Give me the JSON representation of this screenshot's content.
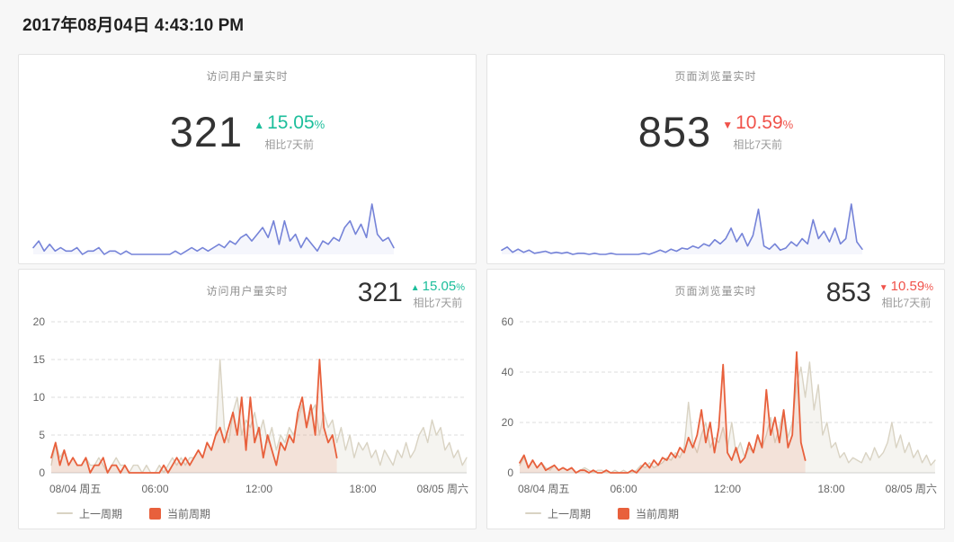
{
  "header": {
    "datetime": "2017年08月04日 4:43:10 PM"
  },
  "icons": {
    "up": "▲",
    "down": "▼"
  },
  "colors": {
    "up_green": "#1cbe9b",
    "down_red": "#f0524a",
    "current_orange": "#e8603c",
    "previous_gray": "#d9d3c3",
    "sparkline_blue": "#7583d8",
    "grid_dash": "#dedede",
    "axis_line": "#cfcfcf"
  },
  "chart_data": [
    {
      "id": "visitors",
      "type": "line",
      "title": "访问用户量实时",
      "summary": {
        "value": "321",
        "delta_percent": "15.05",
        "percent_sign": "%",
        "direction": "up",
        "compare_label": "相比7天前"
      },
      "x_unit": "hours since 08/04 00:00",
      "x_range_hours": [
        0,
        24
      ],
      "x_ticks": [
        {
          "pos": 0,
          "label": "08/04 周五"
        },
        {
          "pos": 6,
          "label": "06:00"
        },
        {
          "pos": 12,
          "label": "12:00"
        },
        {
          "pos": 18,
          "label": "18:00"
        },
        {
          "pos": 24,
          "label": "08/05 周六"
        }
      ],
      "ylim": [
        0,
        20
      ],
      "y_ticks": [
        0,
        5,
        10,
        15,
        20
      ],
      "grid": "horizontal-dashed",
      "legend_position": "bottom-left",
      "sample_step_hours": 0.25,
      "series": [
        {
          "name": "上一周期",
          "color": "#d9d3c3",
          "start_hour": 0,
          "values": [
            1,
            4,
            2,
            3,
            1,
            2,
            1,
            1,
            2,
            1,
            1,
            2,
            1,
            0,
            1,
            2,
            1,
            1,
            0,
            1,
            1,
            0,
            1,
            0,
            0,
            1,
            0,
            1,
            2,
            1,
            2,
            1,
            2,
            2,
            3,
            2,
            4,
            3,
            5,
            15,
            6,
            4,
            8,
            10,
            5,
            7,
            6,
            8,
            5,
            7,
            4,
            6,
            3,
            5,
            4,
            6,
            5,
            7,
            9,
            6,
            8,
            9,
            5,
            8,
            6,
            7,
            4,
            6,
            3,
            5,
            2,
            4,
            3,
            4,
            2,
            3,
            1,
            3,
            2,
            1,
            3,
            2,
            4,
            2,
            3,
            5,
            6,
            4,
            7,
            5,
            6,
            3,
            4,
            2,
            3,
            1,
            2
          ]
        },
        {
          "name": "当前周期",
          "color": "#e8603c",
          "start_hour": 0,
          "values": [
            2,
            4,
            1,
            3,
            1,
            2,
            1,
            1,
            2,
            0,
            1,
            1,
            2,
            0,
            1,
            1,
            0,
            1,
            0,
            0,
            0,
            0,
            0,
            0,
            0,
            0,
            1,
            0,
            1,
            2,
            1,
            2,
            1,
            2,
            3,
            2,
            4,
            3,
            5,
            6,
            4,
            6,
            8,
            5,
            10,
            3,
            10,
            4,
            6,
            2,
            5,
            3,
            1,
            4,
            3,
            5,
            4,
            8,
            10,
            6,
            9,
            5,
            15,
            6,
            4,
            5,
            2
          ]
        }
      ],
      "sparkline": {
        "color": "#7583d8",
        "x_range_hours": [
          0,
          20
        ],
        "series": "当前周期"
      }
    },
    {
      "id": "pageviews",
      "type": "line",
      "title": "页面浏览量实时",
      "summary": {
        "value": "853",
        "delta_percent": "10.59",
        "percent_sign": "%",
        "direction": "down",
        "compare_label": "相比7天前"
      },
      "x_unit": "hours since 08/04 00:00",
      "x_range_hours": [
        0,
        24
      ],
      "x_ticks": [
        {
          "pos": 0,
          "label": "08/04 周五"
        },
        {
          "pos": 6,
          "label": "06:00"
        },
        {
          "pos": 12,
          "label": "12:00"
        },
        {
          "pos": 18,
          "label": "18:00"
        },
        {
          "pos": 24,
          "label": "08/05 周六"
        }
      ],
      "ylim": [
        0,
        60
      ],
      "y_ticks": [
        0,
        20,
        40,
        60
      ],
      "grid": "horizontal-dashed",
      "legend_position": "bottom-left",
      "sample_step_hours": 0.25,
      "series": [
        {
          "name": "上一周期",
          "color": "#d9d3c3",
          "start_hour": 0,
          "values": [
            3,
            6,
            2,
            5,
            2,
            4,
            2,
            1,
            3,
            1,
            2,
            1,
            2,
            0,
            1,
            2,
            1,
            0,
            1,
            1,
            0,
            0,
            1,
            0,
            1,
            0,
            0,
            1,
            3,
            2,
            4,
            2,
            3,
            4,
            6,
            5,
            8,
            6,
            10,
            28,
            12,
            8,
            15,
            20,
            10,
            14,
            12,
            18,
            10,
            20,
            8,
            12,
            6,
            10,
            8,
            14,
            10,
            15,
            22,
            12,
            18,
            25,
            14,
            20,
            35,
            42,
            30,
            44,
            25,
            35,
            15,
            20,
            10,
            12,
            6,
            8,
            4,
            6,
            5,
            4,
            8,
            5,
            10,
            6,
            8,
            12,
            20,
            10,
            15,
            8,
            12,
            6,
            9,
            4,
            7,
            3,
            5
          ]
        },
        {
          "name": "当前周期",
          "color": "#e8603c",
          "start_hour": 0,
          "values": [
            4,
            7,
            2,
            5,
            2,
            4,
            1,
            2,
            3,
            1,
            2,
            1,
            2,
            0,
            1,
            1,
            0,
            1,
            0,
            0,
            1,
            0,
            0,
            0,
            0,
            0,
            1,
            0,
            2,
            4,
            2,
            5,
            3,
            6,
            5,
            8,
            6,
            10,
            8,
            14,
            10,
            15,
            25,
            12,
            20,
            8,
            18,
            43,
            8,
            5,
            10,
            4,
            6,
            12,
            8,
            15,
            10,
            33,
            15,
            22,
            12,
            25,
            10,
            15,
            48,
            12,
            5
          ]
        }
      ],
      "sparkline": {
        "color": "#7583d8",
        "x_range_hours": [
          0,
          20
        ],
        "series": "当前周期"
      }
    }
  ]
}
